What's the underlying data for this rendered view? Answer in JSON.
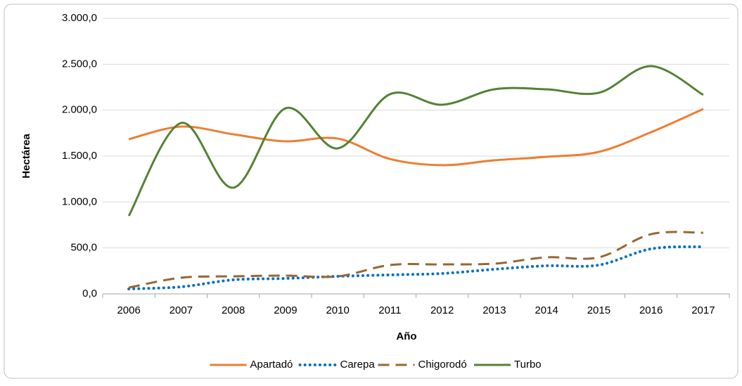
{
  "chart_data": {
    "type": "line",
    "x_label": "Año",
    "y_label": "Hectárea",
    "categories": [
      "2006",
      "2007",
      "2008",
      "2009",
      "2010",
      "2011",
      "2012",
      "2013",
      "2014",
      "2015",
      "2016",
      "2017"
    ],
    "series": [
      {
        "name": "Apartadó",
        "color": "#ed7d31",
        "dash": "solid",
        "values": [
          1684,
          1821,
          1737,
          1661,
          1691,
          1469,
          1401,
          1454,
          1492,
          1546,
          1760,
          2013
        ]
      },
      {
        "name": "Carepa",
        "color": "#0070c0",
        "dash": "dotted",
        "values": [
          54,
          77,
          153,
          168,
          191,
          207,
          222,
          268,
          306,
          314,
          490,
          513
        ]
      },
      {
        "name": "Chigorodó",
        "color": "#996633",
        "dash": "dashed",
        "values": [
          69,
          176,
          191,
          199,
          191,
          314,
          321,
          329,
          398,
          398,
          650,
          666
        ]
      },
      {
        "name": "Turbo",
        "color": "#548235",
        "dash": "solid",
        "values": [
          849,
          1860,
          1156,
          2020,
          1584,
          2173,
          2059,
          2227,
          2227,
          2189,
          2480,
          2166
        ]
      }
    ],
    "ylim": [
      0,
      3000
    ],
    "yticks": [
      {
        "value": 0,
        "label": "0,0"
      },
      {
        "value": 500,
        "label": "500,0"
      },
      {
        "value": 1000,
        "label": "1.000,0"
      },
      {
        "value": 1500,
        "label": "1.500,0"
      },
      {
        "value": 2000,
        "label": "2.000,0"
      },
      {
        "value": 2500,
        "label": "2.500,0"
      },
      {
        "value": 3000,
        "label": "3.000,0"
      }
    ],
    "grid": true,
    "smooth": true,
    "legend": "bottom"
  }
}
